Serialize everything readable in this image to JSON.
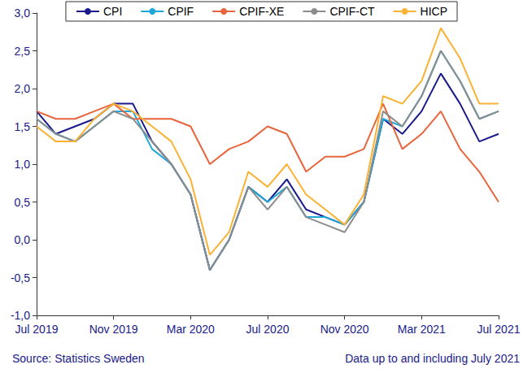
{
  "chart_data": {
    "type": "line",
    "categories": [
      "Jul 2019",
      null,
      null,
      null,
      "Nov 2019",
      null,
      null,
      null,
      "Mar 2020",
      null,
      null,
      null,
      "Jul 2020",
      null,
      null,
      null,
      "Nov 2020",
      null,
      null,
      null,
      "Mar 2021",
      null,
      null,
      null,
      "Jul 2021"
    ],
    "series": [
      {
        "name": "CPI",
        "color": "#1a1a8c",
        "values": [
          1.7,
          1.4,
          1.5,
          1.6,
          1.8,
          1.8,
          1.3,
          1.0,
          0.6,
          -0.4,
          0.0,
          0.7,
          0.5,
          0.8,
          0.4,
          0.3,
          0.2,
          0.5,
          1.6,
          1.4,
          1.7,
          2.2,
          1.8,
          1.3,
          1.4
        ]
      },
      {
        "name": "CPIF",
        "color": "#1ea7d8",
        "values": [
          1.6,
          1.4,
          1.3,
          1.5,
          1.7,
          1.7,
          1.2,
          1.0,
          0.6,
          -0.4,
          0.0,
          0.7,
          0.5,
          0.7,
          0.3,
          0.3,
          0.2,
          0.5,
          1.6,
          1.5,
          1.9,
          2.5,
          2.1,
          1.6,
          1.7
        ]
      },
      {
        "name": "CPIF-XE",
        "color": "#e8643c",
        "values": [
          1.7,
          1.6,
          1.6,
          1.7,
          1.8,
          1.6,
          1.6,
          1.6,
          1.5,
          1.0,
          1.2,
          1.3,
          1.5,
          1.4,
          0.9,
          1.1,
          1.1,
          1.2,
          1.8,
          1.2,
          1.4,
          1.7,
          1.2,
          0.9,
          0.5
        ]
      },
      {
        "name": "CPIF-CT",
        "color": "#8c8c8c",
        "values": [
          1.6,
          1.4,
          1.3,
          1.5,
          1.7,
          1.6,
          1.3,
          1.0,
          0.6,
          -0.4,
          0.0,
          0.7,
          0.4,
          0.7,
          0.3,
          0.2,
          0.1,
          0.5,
          1.7,
          1.5,
          1.9,
          2.5,
          2.1,
          1.6,
          1.7
        ]
      },
      {
        "name": "HICP",
        "color": "#f9b233",
        "values": [
          1.5,
          1.3,
          1.3,
          1.6,
          1.8,
          1.7,
          1.5,
          1.3,
          0.8,
          -0.2,
          0.1,
          0.9,
          0.7,
          1.0,
          0.6,
          0.4,
          0.2,
          0.6,
          1.9,
          1.8,
          2.1,
          2.8,
          2.4,
          1.8,
          1.8
        ]
      }
    ],
    "ylim": [
      -1,
      3
    ],
    "yticks": [
      {
        "value": -1,
        "label": "-1,0"
      },
      {
        "value": -0.5,
        "label": "-0,5"
      },
      {
        "value": 0,
        "label": "0,0"
      },
      {
        "value": 0.5,
        "label": "0,5"
      },
      {
        "value": 1,
        "label": "1,0"
      },
      {
        "value": 1.5,
        "label": "1,5"
      },
      {
        "value": 2,
        "label": "2,0"
      },
      {
        "value": 2.5,
        "label": "2,5"
      },
      {
        "value": 3,
        "label": "3,0"
      }
    ],
    "grid": false,
    "legend": "top",
    "annotations": [
      "Source: Statistics Sweden",
      "Data up to and including July 2021"
    ]
  }
}
